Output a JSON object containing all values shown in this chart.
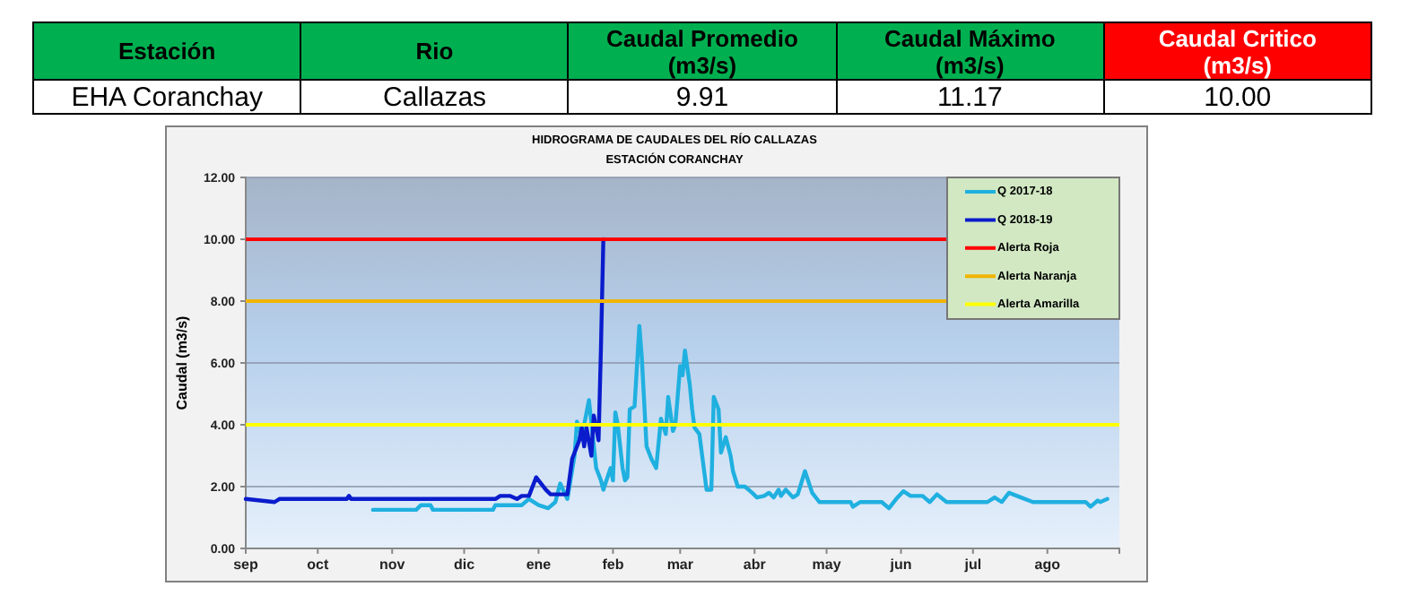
{
  "chart_data": [
    {
      "type": "other",
      "colors": [
        "#00b050",
        "#00b050",
        "#00b050",
        "#00b050",
        "#ff0000"
      ],
      "annotations": [
        "Estación",
        "Rio",
        "Caudal Promedio (m3/s)",
        "Caudal Máximo (m3/s)",
        "Caudal Critico (m3/s)",
        "EHA Coranchay",
        "Callazas",
        "9.91",
        "11.17",
        "10.00"
      ]
    },
    {
      "type": "line",
      "title": "HIDROGRAMA  DE CAUDALES DEL RÍO CALLAZAS",
      "subtitle": "ESTACIÓN CORANCHAY",
      "ylabel": "Caudal (m3/s)",
      "xlim": [
        "2018-09-01",
        "2019-08-31"
      ],
      "xticks": [
        {
          "value": "2018-09-01",
          "label": "sep"
        },
        {
          "value": "2018-10-01",
          "label": "oct"
        },
        {
          "value": "2018-11-01",
          "label": "nov"
        },
        {
          "value": "2018-12-01",
          "label": "dic"
        },
        {
          "value": "2019-01-01",
          "label": "ene"
        },
        {
          "value": "2019-02-01",
          "label": "feb"
        },
        {
          "value": "2019-03-01",
          "label": "mar"
        },
        {
          "value": "2019-04-01",
          "label": "abr"
        },
        {
          "value": "2019-05-01",
          "label": "may"
        },
        {
          "value": "2019-06-01",
          "label": "jun"
        },
        {
          "value": "2019-07-01",
          "label": "jul"
        },
        {
          "value": "2019-08-01",
          "label": "ago"
        }
      ],
      "ylim": [
        0,
        12
      ],
      "yticks": [
        {
          "value": 0,
          "label": "0.00"
        },
        {
          "value": 2,
          "label": "2.00"
        },
        {
          "value": 4,
          "label": "4.00"
        },
        {
          "value": 6,
          "label": "6.00"
        },
        {
          "value": 8,
          "label": "8.00"
        },
        {
          "value": 10,
          "label": "10.00"
        },
        {
          "value": 12,
          "label": "12.00"
        }
      ],
      "grid": "y",
      "legend": "top right",
      "marker": "none",
      "line_style": "solid",
      "series": [
        {
          "name": "Q 2017-18",
          "color": "#1fb0e0",
          "x": [
            "2018-10-24",
            "2018-11-11",
            "2018-11-13",
            "2018-11-17",
            "2018-11-18",
            "2018-12-13",
            "2018-12-14",
            "2018-12-25",
            "2018-12-28",
            "2019-01-01",
            "2019-01-05",
            "2019-01-08",
            "2019-01-10",
            "2019-01-13",
            "2019-01-16",
            "2019-01-17",
            "2019-01-19",
            "2019-01-22",
            "2019-01-25",
            "2019-01-27",
            "2019-01-28",
            "2019-01-31",
            "2019-02-01",
            "2019-02-02",
            "2019-02-03",
            "2019-02-05",
            "2019-02-06",
            "2019-02-07",
            "2019-02-08",
            "2019-02-10",
            "2019-02-12",
            "2019-02-13",
            "2019-02-15",
            "2019-02-17",
            "2019-02-19",
            "2019-02-21",
            "2019-02-23",
            "2019-02-24",
            "2019-02-26",
            "2019-02-27",
            "2019-03-01",
            "2019-03-02",
            "2019-03-03",
            "2019-03-05",
            "2019-03-06",
            "2019-03-07",
            "2019-03-09",
            "2019-03-12",
            "2019-03-14",
            "2019-03-15",
            "2019-03-17",
            "2019-03-18",
            "2019-03-20",
            "2019-03-22",
            "2019-03-23",
            "2019-03-25",
            "2019-03-28",
            "2019-03-31",
            "2019-04-02",
            "2019-04-05",
            "2019-04-07",
            "2019-04-09",
            "2019-04-11",
            "2019-04-12",
            "2019-04-14",
            "2019-04-17",
            "2019-04-19",
            "2019-04-22",
            "2019-04-25",
            "2019-04-28",
            "2019-05-11",
            "2019-05-12",
            "2019-05-15",
            "2019-05-24",
            "2019-05-27",
            "2019-05-30",
            "2019-06-02",
            "2019-06-05",
            "2019-06-10",
            "2019-06-13",
            "2019-06-16",
            "2019-06-20",
            "2019-07-07",
            "2019-07-10",
            "2019-07-13",
            "2019-07-16",
            "2019-07-21",
            "2019-07-26",
            "2019-08-17",
            "2019-08-19",
            "2019-08-22",
            "2019-08-23",
            "2019-08-26"
          ],
          "values": [
            1.25,
            1.25,
            1.4,
            1.4,
            1.25,
            1.25,
            1.4,
            1.4,
            1.6,
            1.4,
            1.3,
            1.5,
            2.1,
            1.6,
            3.0,
            4.1,
            3.6,
            4.8,
            2.6,
            2.2,
            1.9,
            2.6,
            2.2,
            4.4,
            4.0,
            2.6,
            2.2,
            2.3,
            4.5,
            4.6,
            7.2,
            6.2,
            3.3,
            2.9,
            2.6,
            4.2,
            3.7,
            4.9,
            3.8,
            4.0,
            5.9,
            5.6,
            6.4,
            5.3,
            4.5,
            3.9,
            3.7,
            1.9,
            1.9,
            4.9,
            4.5,
            3.1,
            3.6,
            3.0,
            2.5,
            2.0,
            2.0,
            1.8,
            1.65,
            1.7,
            1.8,
            1.65,
            1.9,
            1.7,
            1.9,
            1.65,
            1.75,
            2.5,
            1.8,
            1.5,
            1.5,
            1.35,
            1.5,
            1.5,
            1.3,
            1.6,
            1.85,
            1.7,
            1.7,
            1.5,
            1.75,
            1.5,
            1.5,
            1.65,
            1.5,
            1.8,
            1.65,
            1.5,
            1.5,
            1.35,
            1.55,
            1.5,
            1.6
          ]
        },
        {
          "name": "Q 2018-19",
          "color": "#0a1ccc",
          "x": [
            "2018-09-01",
            "2018-09-13",
            "2018-09-15",
            "2018-10-13",
            "2018-10-14",
            "2018-10-15",
            "2018-12-14",
            "2018-12-16",
            "2018-12-20",
            "2018-12-23",
            "2018-12-25",
            "2018-12-28",
            "2018-12-31",
            "2019-01-04",
            "2019-01-06",
            "2019-01-13",
            "2019-01-15",
            "2019-01-18",
            "2019-01-19",
            "2019-01-20",
            "2019-01-21",
            "2019-01-23",
            "2019-01-24",
            "2019-01-26",
            "2019-01-27",
            "2019-01-28"
          ],
          "values": [
            1.6,
            1.5,
            1.6,
            1.6,
            1.7,
            1.6,
            1.6,
            1.7,
            1.7,
            1.6,
            1.7,
            1.7,
            2.3,
            1.9,
            1.75,
            1.75,
            2.9,
            3.5,
            3.9,
            3.3,
            3.9,
            3.0,
            4.3,
            3.5,
            6.5,
            10.0
          ]
        }
      ],
      "ref_lines": [
        {
          "axis": "y",
          "value": 10,
          "label": "Alerta Roja",
          "color": "#ff0000",
          "line_style": "solid"
        },
        {
          "axis": "y",
          "value": 8,
          "label": "Alerta Naranja",
          "color": "#f0b400",
          "line_style": "solid"
        },
        {
          "axis": "y",
          "value": 4,
          "label": "Alerta Amarilla",
          "color": "#ffff00",
          "line_style": "solid"
        }
      ]
    }
  ]
}
